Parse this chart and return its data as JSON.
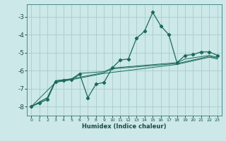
{
  "title": "",
  "xlabel": "Humidex (Indice chaleur)",
  "background_color": "#cce8e8",
  "grid_color": "#aacccc",
  "line_color": "#1a6b5a",
  "xlim": [
    -0.5,
    23.5
  ],
  "ylim": [
    -8.5,
    -2.3
  ],
  "yticks": [
    -8,
    -7,
    -6,
    -5,
    -4,
    -3
  ],
  "xticks": [
    0,
    1,
    2,
    3,
    4,
    5,
    6,
    7,
    8,
    9,
    10,
    11,
    12,
    13,
    14,
    15,
    16,
    17,
    18,
    19,
    20,
    21,
    22,
    23
  ],
  "series": [
    [
      0,
      -8.0
    ],
    [
      1,
      -7.8
    ],
    [
      2,
      -7.6
    ],
    [
      3,
      -6.6
    ],
    [
      4,
      -6.55
    ],
    [
      5,
      -6.5
    ],
    [
      6,
      -6.2
    ],
    [
      7,
      -7.5
    ],
    [
      8,
      -6.75
    ],
    [
      9,
      -6.65
    ],
    [
      10,
      -5.85
    ],
    [
      11,
      -5.4
    ],
    [
      12,
      -5.35
    ],
    [
      13,
      -4.2
    ],
    [
      14,
      -3.8
    ],
    [
      15,
      -2.75
    ],
    [
      16,
      -3.5
    ],
    [
      17,
      -4.0
    ],
    [
      18,
      -5.55
    ],
    [
      19,
      -5.15
    ],
    [
      20,
      -5.1
    ],
    [
      21,
      -4.95
    ],
    [
      22,
      -4.95
    ],
    [
      23,
      -5.15
    ]
  ],
  "series2": [
    [
      0,
      -8.0
    ],
    [
      1,
      -7.75
    ],
    [
      2,
      -7.5
    ],
    [
      3,
      -6.55
    ],
    [
      4,
      -6.5
    ],
    [
      5,
      -6.45
    ],
    [
      6,
      -6.15
    ],
    [
      9,
      -6.05
    ],
    [
      10,
      -5.85
    ],
    [
      18,
      -5.55
    ],
    [
      19,
      -5.35
    ],
    [
      22,
      -5.15
    ],
    [
      23,
      -5.25
    ]
  ],
  "series3": [
    [
      0,
      -8.0
    ],
    [
      2,
      -7.5
    ],
    [
      3,
      -6.6
    ],
    [
      5,
      -6.45
    ],
    [
      9,
      -6.1
    ],
    [
      10,
      -5.9
    ],
    [
      18,
      -5.6
    ],
    [
      22,
      -5.2
    ],
    [
      23,
      -5.3
    ]
  ],
  "series4": [
    [
      0,
      -8.0
    ],
    [
      3,
      -6.65
    ],
    [
      5,
      -6.5
    ],
    [
      9,
      -6.15
    ],
    [
      18,
      -5.65
    ],
    [
      22,
      -5.25
    ],
    [
      23,
      -5.35
    ]
  ]
}
